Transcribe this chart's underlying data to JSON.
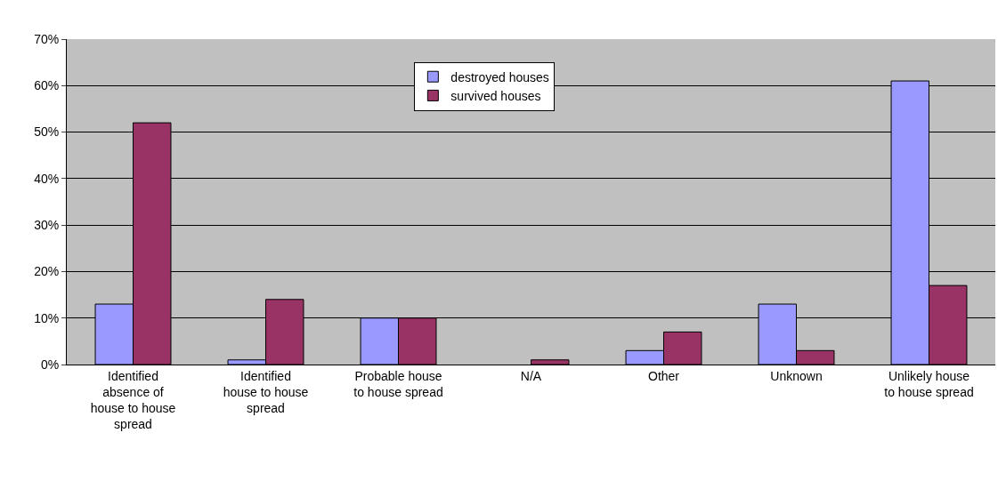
{
  "chart_data": {
    "type": "bar",
    "categories": [
      "Identified absence of house to house spread",
      "Identified house to house spread",
      "Probable house to house spread",
      "N/A",
      "Other",
      "Unknown",
      "Unlikely house to house spread"
    ],
    "series": [
      {
        "name": "destroyed houses",
        "color": "#9999ff",
        "values": [
          13,
          1,
          10,
          null,
          3,
          13,
          61
        ]
      },
      {
        "name": "survived houses",
        "color": "#993366",
        "values": [
          52,
          14,
          10,
          1,
          7,
          3,
          17
        ]
      }
    ],
    "ylim": [
      0,
      70
    ],
    "yticks": [
      {
        "value": 0,
        "label": "0%"
      },
      {
        "value": 10,
        "label": "10%"
      },
      {
        "value": 20,
        "label": "20%"
      },
      {
        "value": 30,
        "label": "30%"
      },
      {
        "value": 40,
        "label": "40%"
      },
      {
        "value": 50,
        "label": "50%"
      },
      {
        "value": 60,
        "label": "60%"
      },
      {
        "value": 70,
        "label": "70%"
      }
    ],
    "grid": "y",
    "legend": "top"
  }
}
